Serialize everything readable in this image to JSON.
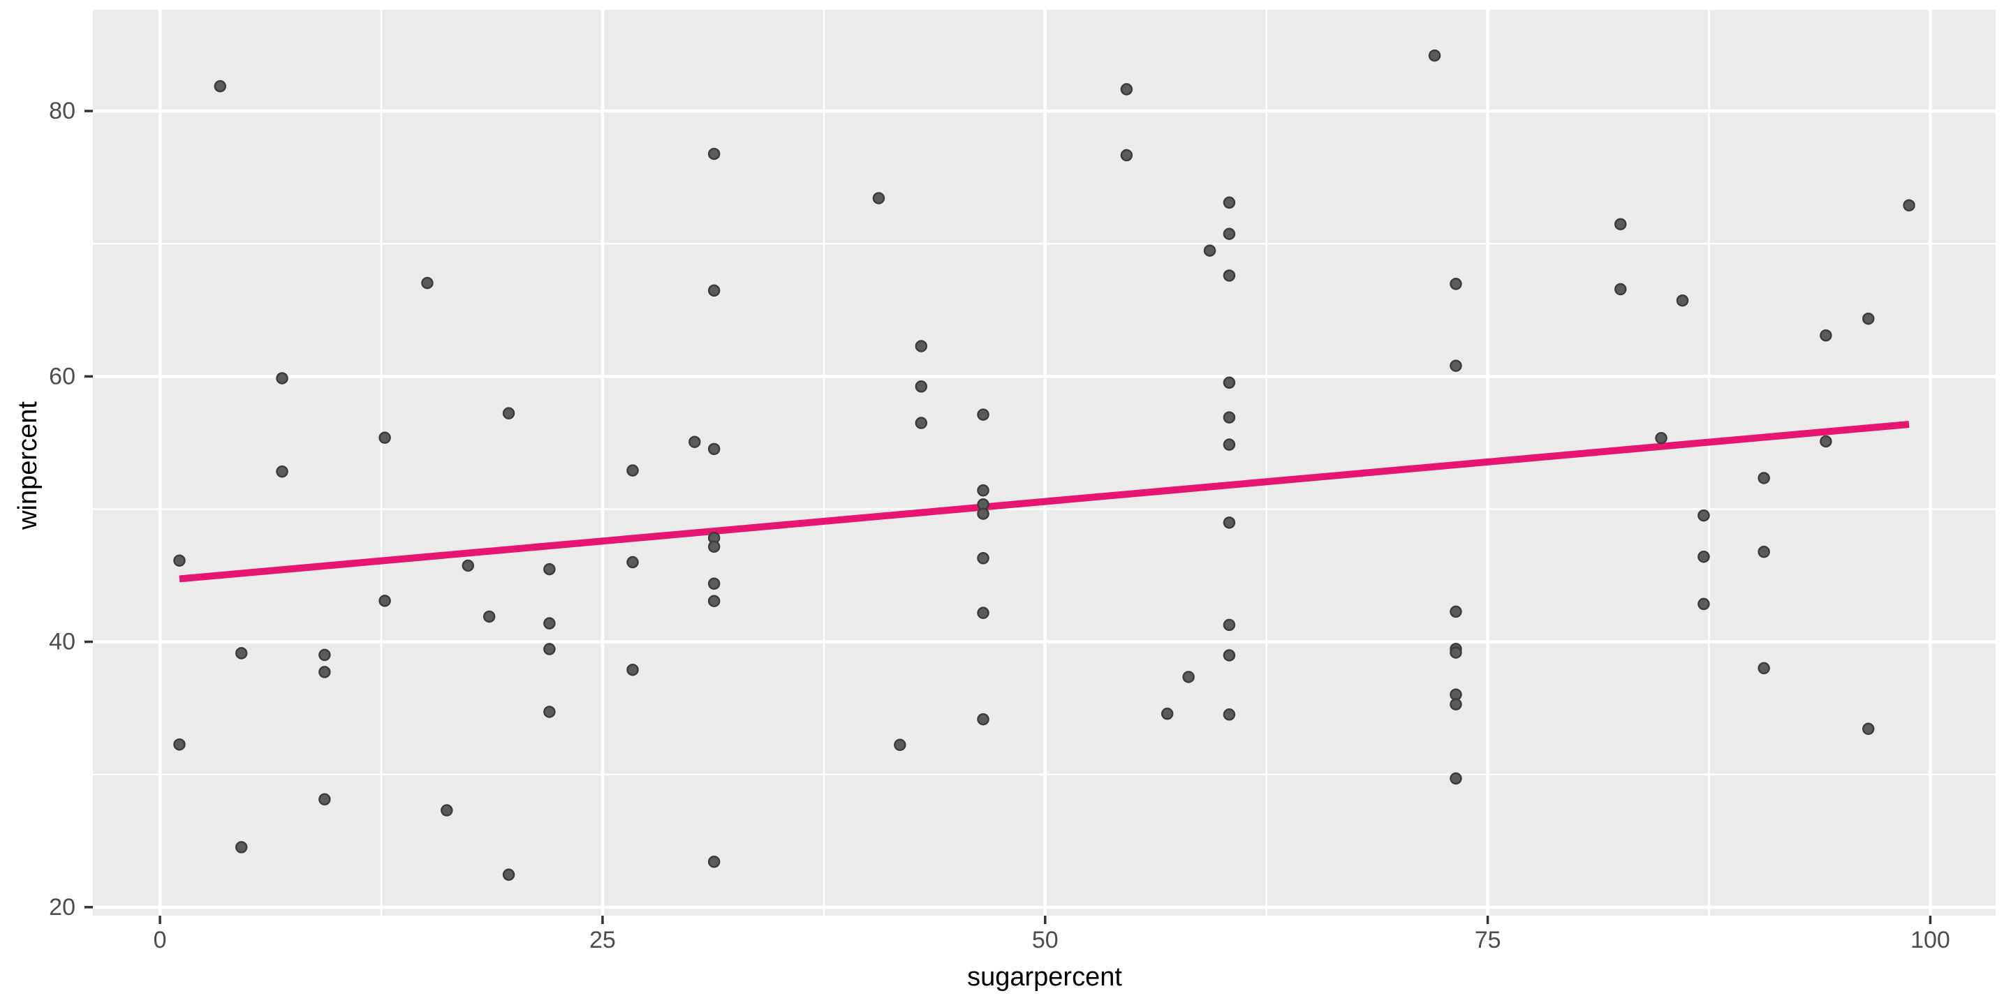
{
  "figure": {
    "x_axis_title": "sugarpercent",
    "y_axis_title": "winpercent"
  },
  "chart_data": {
    "type": "scatter",
    "title": "",
    "xlabel": "sugarpercent",
    "ylabel": "winpercent",
    "x_domain": [
      -3.79,
      103.69
    ],
    "y_domain": [
      19.36,
      87.63
    ],
    "x_ticks": {
      "values": [
        0,
        25,
        50,
        75,
        100
      ],
      "labels": [
        "0",
        "25",
        "50",
        "75",
        "100"
      ]
    },
    "y_ticks": {
      "values": [
        20,
        40,
        60,
        80
      ],
      "labels": [
        "20",
        "40",
        "60",
        "80"
      ]
    },
    "x_minor_gridlines": [
      12.5,
      37.5,
      62.5,
      87.5
    ],
    "y_minor_gridlines": [
      30,
      50,
      70
    ],
    "grid": "on",
    "legend": "none",
    "points": [
      [
        73.2,
        66.97
      ],
      [
        60.4,
        67.6
      ],
      [
        1.1,
        32.26
      ],
      [
        1.1,
        46.12
      ],
      [
        90.6,
        52.34
      ],
      [
        46.5,
        50.35
      ],
      [
        60.4,
        56.91
      ],
      [
        31.3,
        23.42
      ],
      [
        90.6,
        38.01
      ],
      [
        60.4,
        34.52
      ],
      [
        60.4,
        38.98
      ],
      [
        73.2,
        36.02
      ],
      [
        4.6,
        24.52
      ],
      [
        73.2,
        42.27
      ],
      [
        73.2,
        39.46
      ],
      [
        12.7,
        43.09
      ],
      [
        73.2,
        39.19
      ],
      [
        90.6,
        46.78
      ],
      [
        46.5,
        57.12
      ],
      [
        46.5,
        34.16
      ],
      [
        46.5,
        51.41
      ],
      [
        46.5,
        42.18
      ],
      [
        12.7,
        55.38
      ],
      [
        43.0,
        62.28
      ],
      [
        43.0,
        56.49
      ],
      [
        43.0,
        59.24
      ],
      [
        9.3,
        28.13
      ],
      [
        19.7,
        57.22
      ],
      [
        31.3,
        76.77
      ],
      [
        22.0,
        41.39
      ],
      [
        4.6,
        39.14
      ],
      [
        26.7,
        52.91
      ],
      [
        82.5,
        71.47
      ],
      [
        82.5,
        66.57
      ],
      [
        87.2,
        46.41
      ],
      [
        30.2,
        55.06
      ],
      [
        60.4,
        73.1
      ],
      [
        73.2,
        60.8
      ],
      [
        96.5,
        64.35
      ],
      [
        31.3,
        47.83
      ],
      [
        31.3,
        54.53
      ],
      [
        84.8,
        55.35
      ],
      [
        60.4,
        70.74
      ],
      [
        31.3,
        66.47
      ],
      [
        19.7,
        22.45
      ],
      [
        22.0,
        39.45
      ],
      [
        46.5,
        46.3
      ],
      [
        59.3,
        69.48
      ],
      [
        9.3,
        37.72
      ],
      [
        60.4,
        41.27
      ],
      [
        58.1,
        37.35
      ],
      [
        3.4,
        81.87
      ],
      [
        72.0,
        84.18
      ],
      [
        40.6,
        73.43
      ],
      [
        98.8,
        72.89
      ],
      [
        73.2,
        35.29
      ],
      [
        86.0,
        65.72
      ],
      [
        73.2,
        29.7
      ],
      [
        87.2,
        42.85
      ],
      [
        22.0,
        34.72
      ],
      [
        94.1,
        63.09
      ],
      [
        94.1,
        55.1
      ],
      [
        26.7,
        37.89
      ],
      [
        26.7,
        46.0
      ],
      [
        54.6,
        76.67
      ],
      [
        60.4,
        59.53
      ],
      [
        6.9,
        59.86
      ],
      [
        6.9,
        52.83
      ],
      [
        15.1,
        67.04
      ],
      [
        56.9,
        34.58
      ],
      [
        96.5,
        33.44
      ],
      [
        41.8,
        32.23
      ],
      [
        16.2,
        27.3
      ],
      [
        60.4,
        54.86
      ],
      [
        60.4,
        48.98
      ],
      [
        31.3,
        43.07
      ],
      [
        17.4,
        45.74
      ],
      [
        46.5,
        49.65
      ],
      [
        31.3,
        47.17
      ],
      [
        54.6,
        81.64
      ],
      [
        22.0,
        45.47
      ],
      [
        9.3,
        39.01
      ],
      [
        31.3,
        44.38
      ],
      [
        18.6,
        41.9
      ],
      [
        87.2,
        49.52
      ]
    ],
    "trend_line": {
      "type": "linear_fit",
      "x_start": 1.1,
      "y_start": 44.74,
      "x_end": 98.8,
      "y_end": 56.39,
      "slope": 0.119,
      "intercept": 44.61
    },
    "colors": {
      "panel_background": "#EBEBEB",
      "gridline": "#FFFFFF",
      "point_fill": "#5B5B5B",
      "point_stroke": "#3D3D3D",
      "trend_line": "#E6156F",
      "tick_label_text": "#4D4D4D",
      "axis_title_text": "#000000",
      "tick_mark": "#333333"
    }
  }
}
